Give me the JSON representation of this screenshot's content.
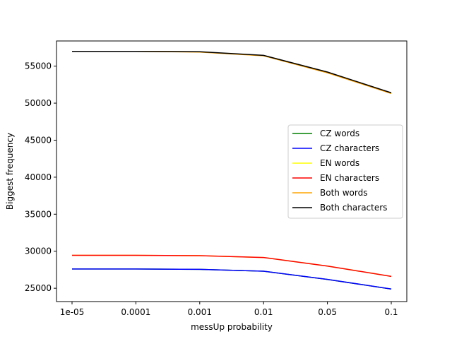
{
  "chart_data": {
    "type": "line",
    "title": "",
    "xlabel": "messUp probability",
    "ylabel": "Biggest frequency",
    "categories": [
      "1e-05",
      "0.0001",
      "0.001",
      "0.01",
      "0.05",
      "0.1"
    ],
    "ylim": [
      23200,
      58400
    ],
    "yticks": [
      25000,
      30000,
      35000,
      40000,
      45000,
      50000,
      55000
    ],
    "grid": false,
    "legend_position": "center-right",
    "series": [
      {
        "name": "CZ words",
        "color": "#008000",
        "values": [
          27600,
          27600,
          27550,
          27300,
          26200,
          24900
        ]
      },
      {
        "name": "CZ characters",
        "color": "#0000ff",
        "values": [
          27600,
          27600,
          27550,
          27300,
          26200,
          24900
        ]
      },
      {
        "name": "EN words",
        "color": "#ffff00",
        "values": [
          29450,
          29450,
          29400,
          29150,
          28000,
          26600
        ]
      },
      {
        "name": "EN characters",
        "color": "#ff0000",
        "values": [
          29450,
          29450,
          29400,
          29150,
          28000,
          26600
        ]
      },
      {
        "name": "Both words",
        "color": "#ffa500",
        "values": [
          57000,
          57000,
          56900,
          56400,
          54100,
          51300
        ]
      },
      {
        "name": "Both characters",
        "color": "#000000",
        "values": [
          57000,
          57000,
          56950,
          56450,
          54200,
          51400
        ]
      }
    ]
  }
}
